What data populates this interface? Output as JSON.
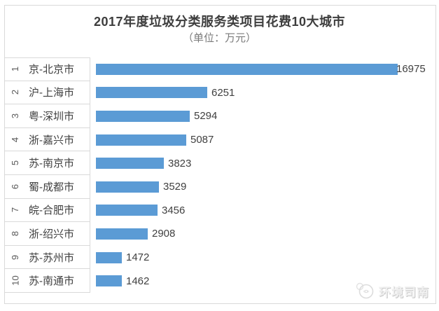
{
  "chart_data": {
    "type": "bar",
    "orientation": "horizontal",
    "title": "2017年度垃圾分类服务类项目花费10大城市",
    "subtitle": "（单位：万元）",
    "unit": "万元",
    "ranks": [
      "1",
      "2",
      "3",
      "4",
      "5",
      "6",
      "7",
      "8",
      "9",
      "10"
    ],
    "categories": [
      "京-北京市",
      "沪-上海市",
      "粤-深圳市",
      "浙-嘉兴市",
      "苏-南京市",
      "蜀-成都市",
      "皖-合肥市",
      "浙-绍兴市",
      "苏-苏州市",
      "苏-南通市"
    ],
    "values": [
      16975,
      6251,
      5294,
      5087,
      3823,
      3529,
      3456,
      2908,
      1472,
      1462
    ],
    "xlim": [
      0,
      17000
    ],
    "grid": false,
    "legend": "none",
    "value_labels": "outside-end",
    "bar_color": "#5b9bd5",
    "text_color": "#404040",
    "border_color": "#d9d9d9"
  },
  "watermark": {
    "text": "环境司南"
  }
}
